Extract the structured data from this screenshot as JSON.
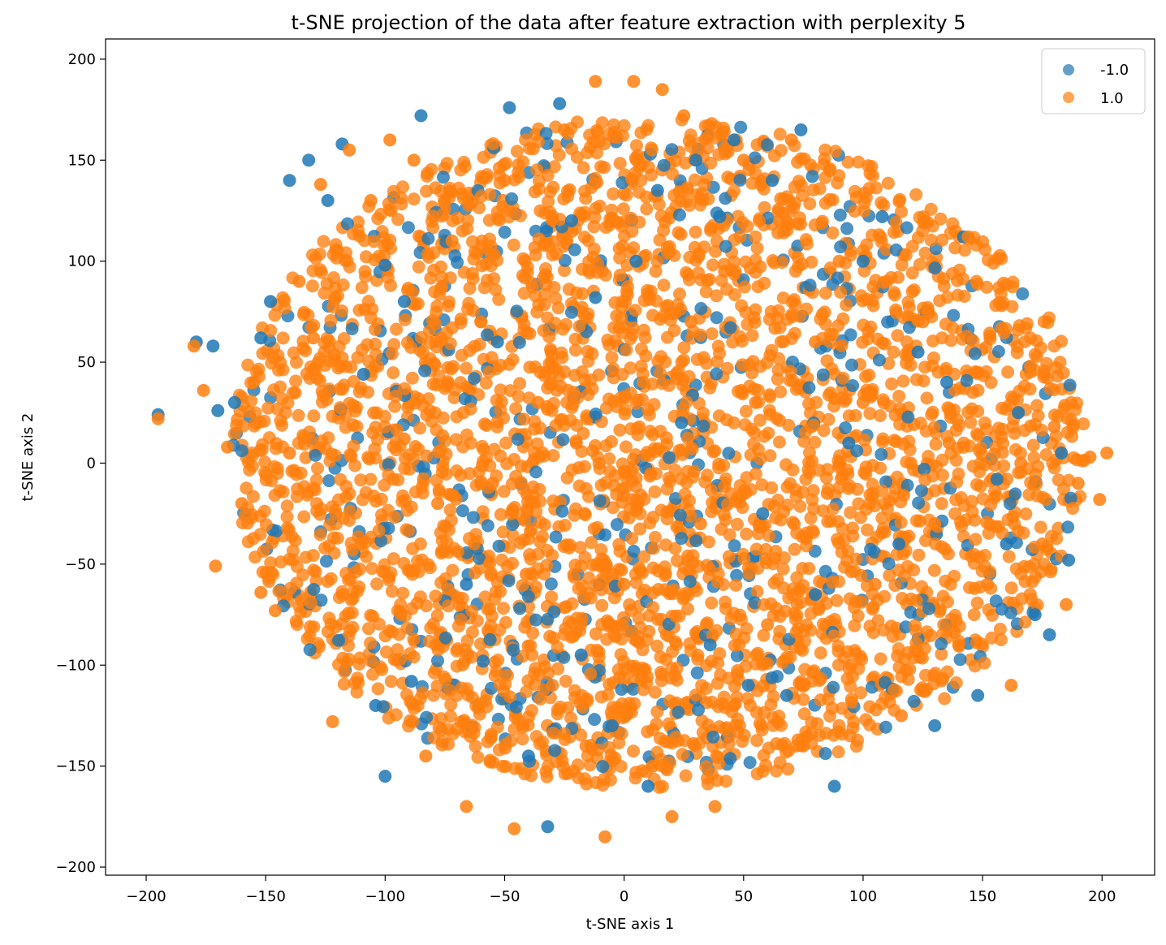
{
  "chart_data": {
    "type": "scatter",
    "title": "t-SNE projection of the data after feature extraction with perplexity 5",
    "xlabel": "t-SNE axis 1",
    "ylabel": "t-SNE axis 2",
    "xlim": [
      -217,
      222
    ],
    "ylim": [
      -204,
      210
    ],
    "xticks": [
      -200,
      -150,
      -100,
      -50,
      0,
      50,
      100,
      150,
      200
    ],
    "yticks": [
      -200,
      -150,
      -100,
      -50,
      0,
      50,
      100,
      150,
      200
    ],
    "grid": false,
    "legend_position": "top-right",
    "series": [
      {
        "name": "-1.0",
        "color": "#1f77b4",
        "points": [
          [
            -195,
            24
          ],
          [
            -179,
            60
          ],
          [
            -172,
            58
          ],
          [
            -170,
            26
          ],
          [
            -163,
            30
          ],
          [
            -152,
            62
          ],
          [
            -148,
            80
          ],
          [
            -140,
            140
          ],
          [
            -132,
            150
          ],
          [
            -124,
            130
          ],
          [
            -118,
            158
          ],
          [
            -109,
            44
          ],
          [
            -100,
            98
          ],
          [
            -92,
            80
          ],
          [
            -85,
            172
          ],
          [
            -100,
            -155
          ],
          [
            -104,
            -120
          ],
          [
            -89,
            -108
          ],
          [
            -66,
            -60
          ],
          [
            -59,
            -98
          ],
          [
            -53,
            60
          ],
          [
            -48,
            176
          ],
          [
            -40,
            -145
          ],
          [
            -32,
            -180
          ],
          [
            -27,
            178
          ],
          [
            -22,
            120
          ],
          [
            -18,
            -95
          ],
          [
            -12,
            82
          ],
          [
            -5,
            -130
          ],
          [
            5,
            100
          ],
          [
            10,
            -160
          ],
          [
            14,
            135
          ],
          [
            24,
            20
          ],
          [
            30,
            150
          ],
          [
            36,
            -90
          ],
          [
            40,
            122
          ],
          [
            46,
            160
          ],
          [
            52,
            -110
          ],
          [
            58,
            -25
          ],
          [
            62,
            140
          ],
          [
            68,
            -115
          ],
          [
            74,
            165
          ],
          [
            80,
            -65
          ],
          [
            88,
            -160
          ],
          [
            94,
            10
          ],
          [
            100,
            100
          ],
          [
            108,
            122
          ],
          [
            115,
            -40
          ],
          [
            123,
            55
          ],
          [
            130,
            -130
          ],
          [
            135,
            40
          ],
          [
            142,
            112
          ],
          [
            148,
            -115
          ],
          [
            156,
            -8
          ],
          [
            160,
            -40
          ],
          [
            165,
            25
          ],
          [
            172,
            -75
          ],
          [
            178,
            -85
          ],
          [
            183,
            5
          ],
          [
            186,
            -48
          ]
        ]
      },
      {
        "name": "1.0",
        "color": "#ff7f0e",
        "points": [
          [
            -195,
            22
          ],
          [
            -180,
            58
          ],
          [
            -176,
            36
          ],
          [
            -171,
            -51
          ],
          [
            -166,
            8
          ],
          [
            -160,
            -20
          ],
          [
            -155,
            40
          ],
          [
            -152,
            -64
          ],
          [
            -146,
            -73
          ],
          [
            -140,
            5
          ],
          [
            -136,
            90
          ],
          [
            -130,
            62
          ],
          [
            -127,
            138
          ],
          [
            -122,
            -128
          ],
          [
            -115,
            155
          ],
          [
            -110,
            -40
          ],
          [
            -106,
            130
          ],
          [
            -98,
            160
          ],
          [
            -92,
            12
          ],
          [
            -88,
            150
          ],
          [
            -83,
            -145
          ],
          [
            -78,
            -20
          ],
          [
            -72,
            110
          ],
          [
            -66,
            -170
          ],
          [
            -60,
            70
          ],
          [
            -55,
            -10
          ],
          [
            -50,
            140
          ],
          [
            -46,
            -181
          ],
          [
            -41,
            -55
          ],
          [
            -36,
            30
          ],
          [
            -30,
            -110
          ],
          [
            -25,
            165
          ],
          [
            -20,
            10
          ],
          [
            -16,
            -140
          ],
          [
            -12,
            189
          ],
          [
            -8,
            -185
          ],
          [
            -4,
            120
          ],
          [
            0,
            -60
          ],
          [
            4,
            189
          ],
          [
            8,
            40
          ],
          [
            12,
            -150
          ],
          [
            16,
            185
          ],
          [
            20,
            -175
          ],
          [
            25,
            172
          ],
          [
            28,
            70
          ],
          [
            32,
            -30
          ],
          [
            38,
            -170
          ],
          [
            42,
            95
          ],
          [
            46,
            -120
          ],
          [
            50,
            150
          ],
          [
            55,
            30
          ],
          [
            60,
            -80
          ],
          [
            65,
            120
          ],
          [
            70,
            160
          ],
          [
            75,
            -140
          ],
          [
            80,
            60
          ],
          [
            85,
            -15
          ],
          [
            90,
            100
          ],
          [
            95,
            -100
          ],
          [
            100,
            30
          ],
          [
            105,
            -60
          ],
          [
            110,
            90
          ],
          [
            116,
            -125
          ],
          [
            120,
            0
          ],
          [
            125,
            70
          ],
          [
            130,
            -30
          ],
          [
            136,
            10
          ],
          [
            140,
            -90
          ],
          [
            144,
            112
          ],
          [
            148,
            45
          ],
          [
            152,
            -60
          ],
          [
            158,
            78
          ],
          [
            162,
            -110
          ],
          [
            166,
            0
          ],
          [
            170,
            48
          ],
          [
            175,
            -40
          ],
          [
            180,
            18
          ],
          [
            185,
            -70
          ],
          [
            190,
            -10
          ],
          [
            195,
            3
          ],
          [
            199,
            -18
          ],
          [
            202,
            5
          ]
        ]
      }
    ]
  }
}
